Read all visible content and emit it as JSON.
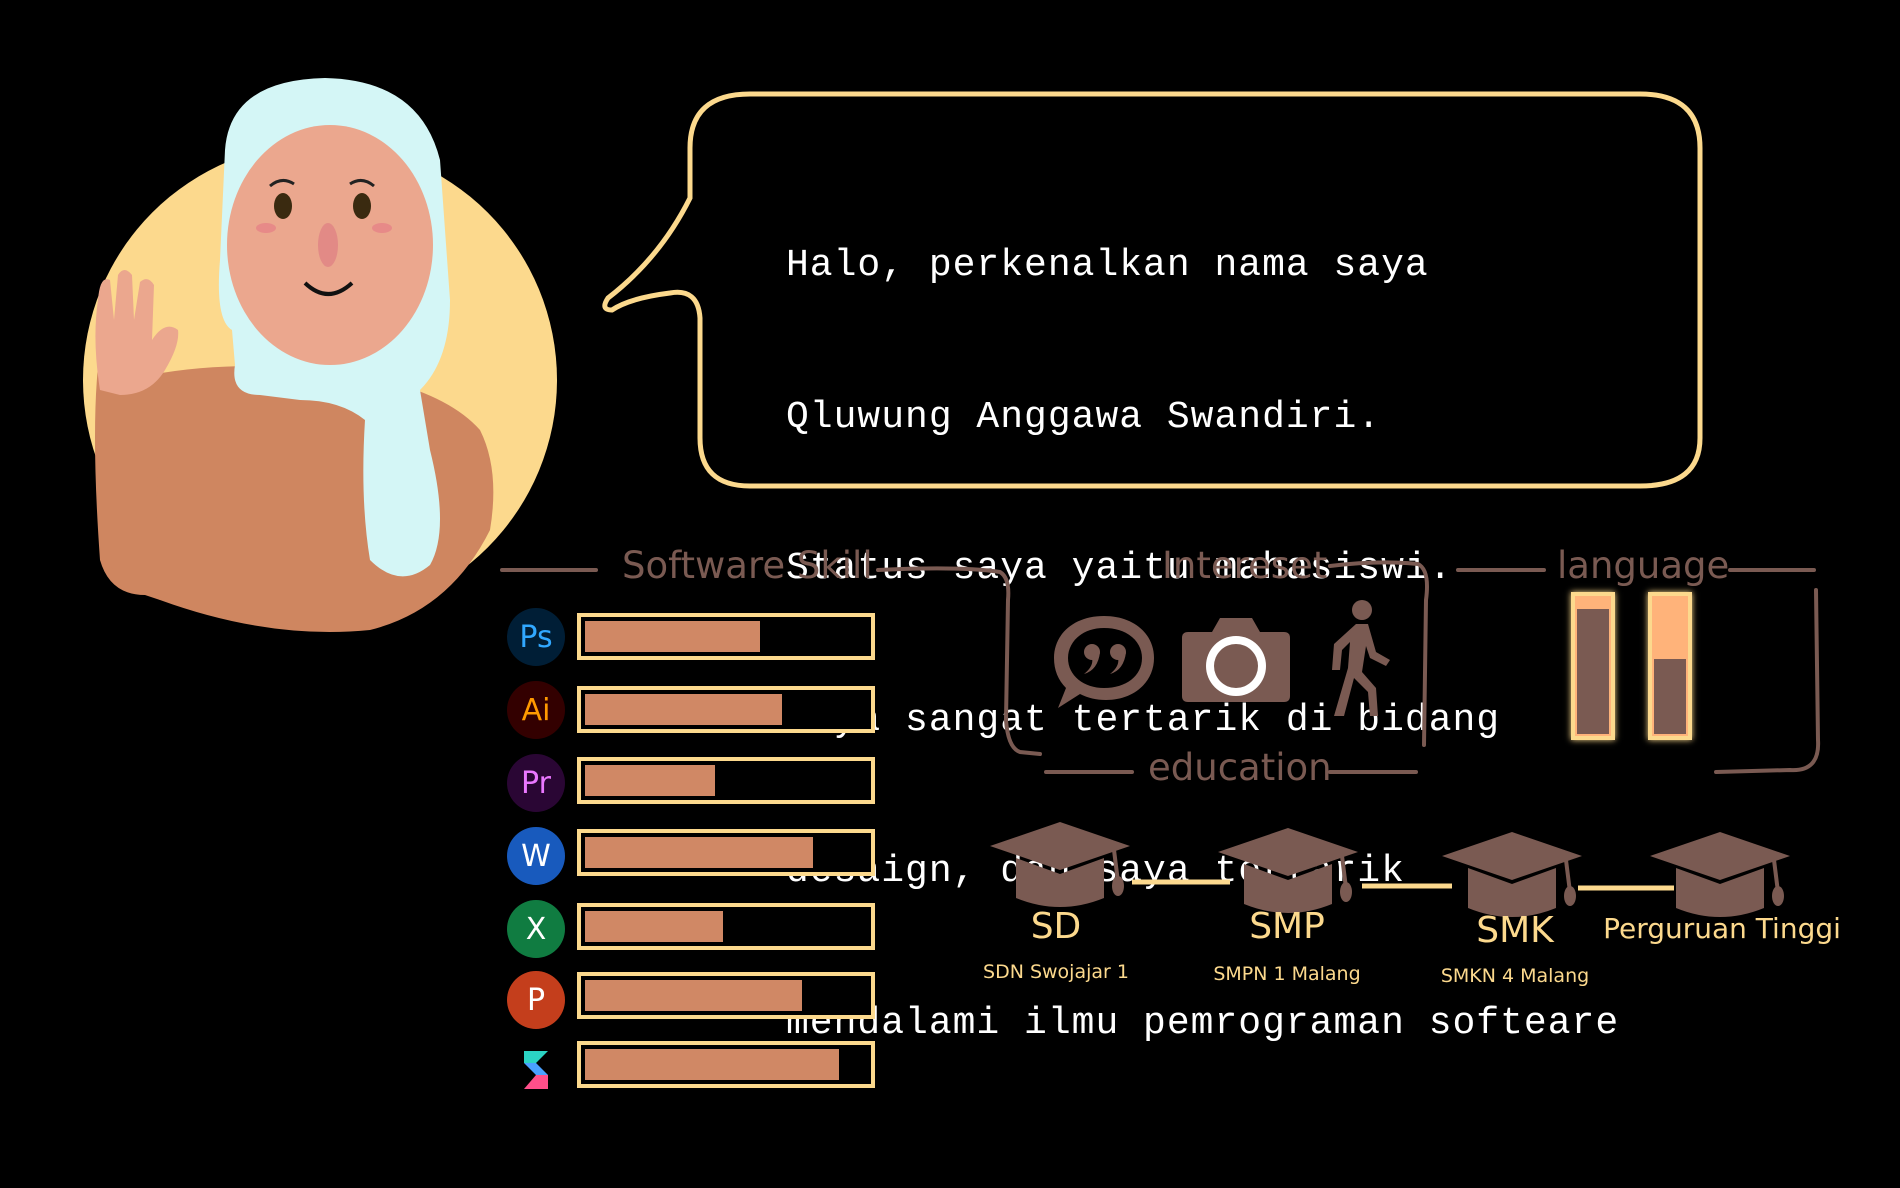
{
  "speech": {
    "lines": [
      "Halo, perkenalkan nama saya",
      "Qluwung Anggawa Swandiri.",
      "Status saya yaitu mahasiswi.",
      "Saya sangat tertarik di bidang",
      "desaign, dan saya tertarik",
      "mendalami ilmu pemrograman softeare"
    ]
  },
  "sections": {
    "software_skill": "Software Skill",
    "interest": "Intereset",
    "language": "language",
    "education": "education"
  },
  "skills": [
    {
      "icon": "photoshop-icon",
      "label": "Ps",
      "level": 0.62,
      "bg": "#001e36",
      "fg": "#31a8ff"
    },
    {
      "icon": "illustrator-icon",
      "label": "Ai",
      "level": 0.7,
      "bg": "#330000",
      "fg": "#ff9a00"
    },
    {
      "icon": "premiere-icon",
      "label": "Pr",
      "level": 0.46,
      "bg": "#2a0634",
      "fg": "#ea77ff"
    },
    {
      "icon": "word-icon",
      "label": "W",
      "level": 0.81,
      "bg": "#185abd",
      "fg": "#ffffff"
    },
    {
      "icon": "excel-icon",
      "label": "X",
      "level": 0.49,
      "bg": "#107c41",
      "fg": "#ffffff"
    },
    {
      "icon": "powerpoint-icon",
      "label": "P",
      "level": 0.77,
      "bg": "#c43e1c",
      "fg": "#ffffff"
    },
    {
      "icon": "spark-icon",
      "label": "",
      "level": 0.9,
      "bg": "#000000",
      "fg": "#ffffff"
    }
  ],
  "interests": [
    "chat-quote-icon",
    "camera-icon",
    "walking-icon"
  ],
  "languages": [
    {
      "name": "language-1",
      "level": 0.92
    },
    {
      "name": "language-2",
      "level": 0.55
    }
  ],
  "education": [
    {
      "level": "SD",
      "school": "SDN Swojajar 1"
    },
    {
      "level": "SMP",
      "school": "SMPN 1 Malang"
    },
    {
      "level": "SMK",
      "school": "SMKN 4 Malang"
    },
    {
      "level": "Perguruan Tinggi",
      "school": ""
    }
  ],
  "colors": {
    "accent": "#fcd98d",
    "bar_fill": "#d08865",
    "brown": "#7a5a52",
    "skin": "#eba78e",
    "hijab": "#d4f6f6",
    "shirt": "#cf8660"
  }
}
